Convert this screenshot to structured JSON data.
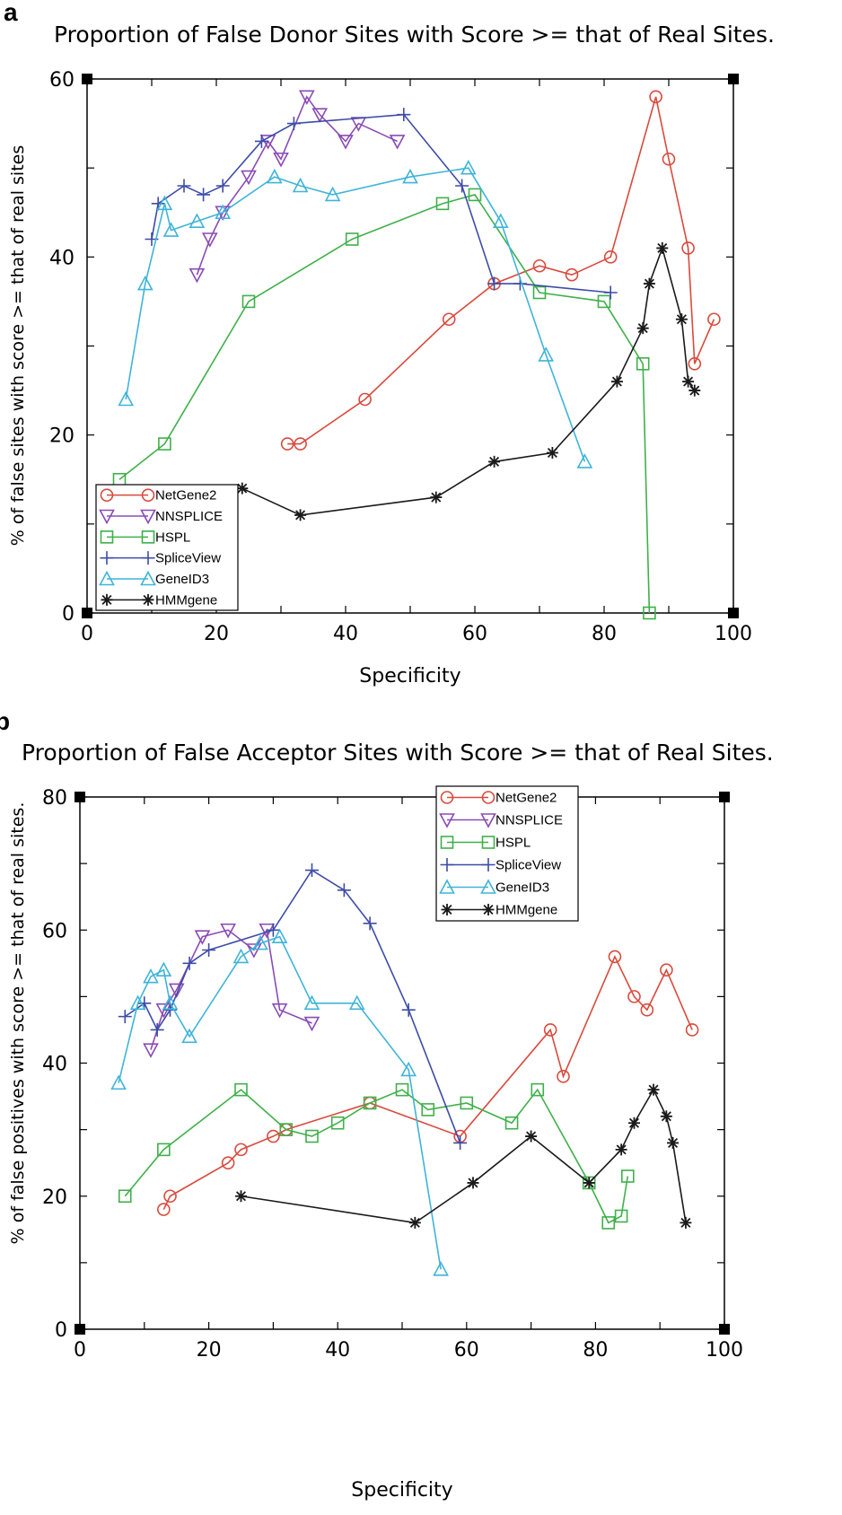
{
  "colors": {
    "NetGene2": "#d94a3d",
    "NNSPLICE": "#8a4bb5",
    "HSPL": "#3fb04a",
    "SpliceView": "#3d4ca8",
    "GeneID3": "#3fb4d8",
    "HMMgene": "#1a1a1a"
  },
  "chart_data": [
    {
      "panel": "a",
      "type": "line",
      "title": "Proportion of False Donor Sites with Score >= that of Real Sites.",
      "xlabel": "Specificity",
      "ylabel": "% of false sites with score >= that of real sites",
      "xlim": [
        0,
        100
      ],
      "ylim": [
        0,
        60
      ],
      "xticks": [
        0,
        20,
        40,
        60,
        80,
        100
      ],
      "yticks": [
        0,
        20,
        40,
        60
      ],
      "legend_position": "bottom-left",
      "series": [
        {
          "name": "NetGene2",
          "marker": "circle",
          "points": [
            [
              31,
              19
            ],
            [
              33,
              19
            ],
            [
              43,
              24
            ],
            [
              56,
              33
            ],
            [
              63,
              37
            ],
            [
              70,
              39
            ],
            [
              75,
              38
            ],
            [
              81,
              40
            ],
            [
              88,
              58
            ],
            [
              90,
              51
            ],
            [
              93,
              41
            ],
            [
              94,
              28
            ],
            [
              97,
              33
            ]
          ]
        },
        {
          "name": "NNSPLICE",
          "marker": "triangle-down",
          "points": [
            [
              17,
              38
            ],
            [
              19,
              42
            ],
            [
              21,
              45
            ],
            [
              25,
              49
            ],
            [
              28,
              53
            ],
            [
              30,
              51
            ],
            [
              34,
              58
            ],
            [
              36,
              56
            ],
            [
              40,
              53
            ],
            [
              42,
              55
            ],
            [
              48,
              53
            ]
          ]
        },
        {
          "name": "HSPL",
          "marker": "square",
          "points": [
            [
              5,
              15
            ],
            [
              12,
              19
            ],
            [
              25,
              35
            ],
            [
              41,
              42
            ],
            [
              55,
              46
            ],
            [
              60,
              47
            ],
            [
              70,
              36
            ],
            [
              80,
              35
            ],
            [
              86,
              28
            ],
            [
              87,
              0
            ]
          ]
        },
        {
          "name": "SpliceView",
          "marker": "plus",
          "points": [
            [
              10,
              42
            ],
            [
              11,
              46
            ],
            [
              15,
              48
            ],
            [
              18,
              47
            ],
            [
              21,
              48
            ],
            [
              27,
              53
            ],
            [
              32,
              55
            ],
            [
              49,
              56
            ],
            [
              58,
              48
            ],
            [
              63,
              37
            ],
            [
              67,
              37
            ],
            [
              81,
              36
            ]
          ]
        },
        {
          "name": "GeneID3",
          "marker": "triangle-up",
          "points": [
            [
              6,
              24
            ],
            [
              9,
              37
            ],
            [
              12,
              46
            ],
            [
              13,
              43
            ],
            [
              17,
              44
            ],
            [
              21,
              45
            ],
            [
              29,
              49
            ],
            [
              33,
              48
            ],
            [
              38,
              47
            ],
            [
              50,
              49
            ],
            [
              59,
              50
            ],
            [
              64,
              44
            ],
            [
              71,
              29
            ],
            [
              77,
              17
            ]
          ]
        },
        {
          "name": "HMMgene",
          "marker": "asterisk",
          "points": [
            [
              24,
              14
            ],
            [
              33,
              11
            ],
            [
              54,
              13
            ],
            [
              63,
              17
            ],
            [
              72,
              18
            ],
            [
              82,
              26
            ],
            [
              86,
              32
            ],
            [
              87,
              37
            ],
            [
              89,
              41
            ],
            [
              92,
              33
            ],
            [
              93,
              26
            ],
            [
              94,
              25
            ]
          ]
        }
      ]
    },
    {
      "panel": "b",
      "type": "line",
      "title": "Proportion of False Acceptor Sites with Score >= that of Real Sites.",
      "xlabel": "Specificity",
      "ylabel": "% of false positives with score >= that of real sites.",
      "xlim": [
        0,
        100
      ],
      "ylim": [
        0,
        80
      ],
      "xticks": [
        0,
        20,
        40,
        60,
        80,
        100
      ],
      "yticks": [
        0,
        20,
        40,
        60,
        80
      ],
      "legend_position": "top-right",
      "series": [
        {
          "name": "NetGene2",
          "marker": "circle",
          "points": [
            [
              13,
              18
            ],
            [
              14,
              20
            ],
            [
              23,
              25
            ],
            [
              25,
              27
            ],
            [
              30,
              29
            ],
            [
              32,
              30
            ],
            [
              45,
              34
            ],
            [
              59,
              29
            ],
            [
              73,
              45
            ],
            [
              75,
              38
            ],
            [
              83,
              56
            ],
            [
              86,
              50
            ],
            [
              88,
              48
            ],
            [
              91,
              54
            ],
            [
              95,
              45
            ]
          ]
        },
        {
          "name": "NNSPLICE",
          "marker": "triangle-down",
          "points": [
            [
              11,
              42
            ],
            [
              13,
              48
            ],
            [
              15,
              51
            ],
            [
              19,
              59
            ],
            [
              23,
              60
            ],
            [
              27,
              57
            ],
            [
              29,
              60
            ],
            [
              31,
              48
            ],
            [
              36,
              46
            ]
          ]
        },
        {
          "name": "HSPL",
          "marker": "square",
          "points": [
            [
              7,
              20
            ],
            [
              13,
              27
            ],
            [
              25,
              36
            ],
            [
              32,
              30
            ],
            [
              36,
              29
            ],
            [
              40,
              31
            ],
            [
              45,
              34
            ],
            [
              50,
              36
            ],
            [
              54,
              33
            ],
            [
              60,
              34
            ],
            [
              67,
              31
            ],
            [
              71,
              36
            ],
            [
              79,
              22
            ],
            [
              82,
              16
            ],
            [
              84,
              17
            ],
            [
              85,
              23
            ]
          ]
        },
        {
          "name": "SpliceView",
          "marker": "plus",
          "points": [
            [
              7,
              47
            ],
            [
              10,
              49
            ],
            [
              12,
              45
            ],
            [
              14,
              48
            ],
            [
              17,
              55
            ],
            [
              20,
              57
            ],
            [
              30,
              60
            ],
            [
              36,
              69
            ],
            [
              41,
              66
            ],
            [
              45,
              61
            ],
            [
              51,
              48
            ],
            [
              59,
              28
            ]
          ]
        },
        {
          "name": "GeneID3",
          "marker": "triangle-up",
          "points": [
            [
              6,
              37
            ],
            [
              9,
              49
            ],
            [
              11,
              53
            ],
            [
              13,
              54
            ],
            [
              14,
              49
            ],
            [
              17,
              44
            ],
            [
              25,
              56
            ],
            [
              28,
              58
            ],
            [
              31,
              59
            ],
            [
              36,
              49
            ],
            [
              43,
              49
            ],
            [
              51,
              39
            ],
            [
              56,
              9
            ]
          ]
        },
        {
          "name": "HMMgene",
          "marker": "asterisk",
          "points": [
            [
              25,
              20
            ],
            [
              52,
              16
            ],
            [
              61,
              22
            ],
            [
              70,
              29
            ],
            [
              79,
              22
            ],
            [
              84,
              27
            ],
            [
              86,
              31
            ],
            [
              89,
              36
            ],
            [
              91,
              32
            ],
            [
              92,
              28
            ],
            [
              94,
              16
            ]
          ]
        }
      ]
    }
  ]
}
